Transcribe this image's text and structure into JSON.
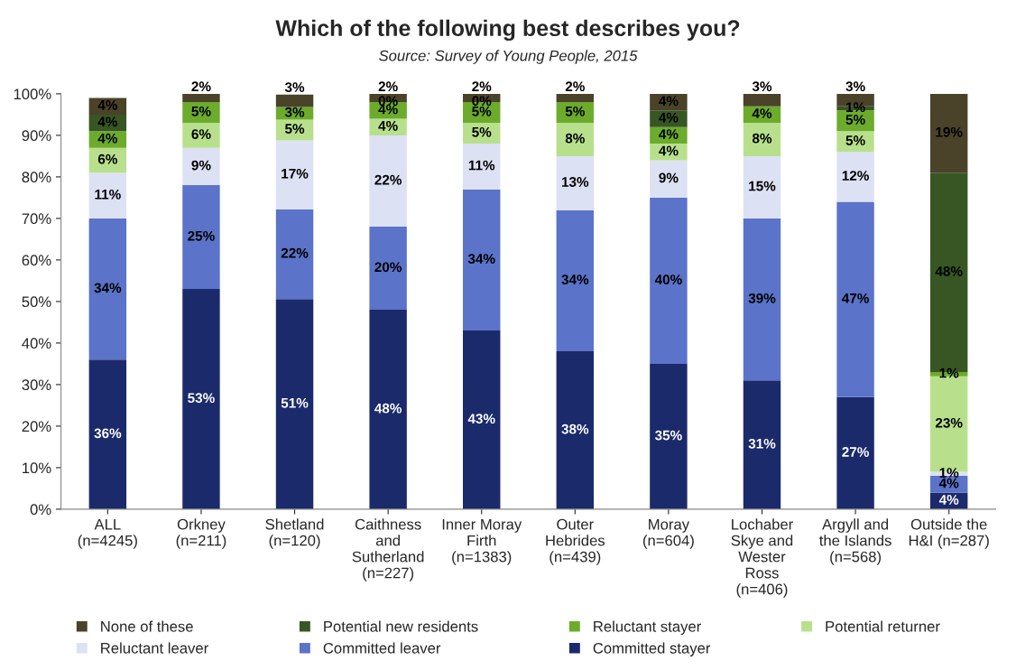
{
  "chart_data": {
    "type": "bar",
    "stacked": true,
    "title": "Which of the following best describes you?",
    "subtitle": "Source: Survey of Young People, 2015",
    "categories": [
      "ALL\n(n=4245)",
      "Orkney\n(n=211)",
      "Shetland\n(n=120)",
      "Caithness\nand\nSutherland\n(n=227)",
      "Inner Moray\nFirth\n(n=1383)",
      "Outer\nHebrides\n(n=439)",
      "Moray\n(n=604)",
      "Lochaber\nSkye and\nWester\nRoss\n(n=406)",
      "Argyll and\nthe Islands\n(n=568)",
      "Outside the\nH&I (n=287)"
    ],
    "ylim": [
      0,
      100
    ],
    "yticks": [
      {
        "value": 0,
        "label": "0%"
      },
      {
        "value": 10,
        "label": "10%"
      },
      {
        "value": 20,
        "label": "20%"
      },
      {
        "value": 30,
        "label": "30%"
      },
      {
        "value": 40,
        "label": "40%"
      },
      {
        "value": 50,
        "label": "50%"
      },
      {
        "value": 60,
        "label": "60%"
      },
      {
        "value": 70,
        "label": "70%"
      },
      {
        "value": 80,
        "label": "80%"
      },
      {
        "value": 90,
        "label": "90%"
      },
      {
        "value": 100,
        "label": "100%"
      }
    ],
    "grid": false,
    "legend": "bottom",
    "series": [
      {
        "name": "Committed stayer",
        "color": "#1b2a6b",
        "values": [
          36,
          53,
          50.6,
          48,
          43,
          38,
          35,
          31,
          27,
          4
        ],
        "value_labels": [
          "36%",
          "53%",
          "51%",
          "48%",
          "43%",
          "38%",
          "35%",
          "31%",
          "27%",
          "4%"
        ]
      },
      {
        "name": "Committed leaver",
        "color": "#5b73c8",
        "values": [
          34,
          25,
          21.6,
          20,
          34,
          34,
          40,
          39,
          47,
          4
        ],
        "value_labels": [
          "34%",
          "25%",
          "22%",
          "20%",
          "34%",
          "34%",
          "40%",
          "39%",
          "47%",
          "4%"
        ]
      },
      {
        "name": "Reluctant leaver",
        "color": "#dde1f4",
        "values": [
          11,
          9,
          16.6,
          22,
          11,
          13,
          9,
          15,
          12,
          1
        ],
        "value_labels": [
          "11%",
          "9%",
          "17%",
          "22%",
          "11%",
          "13%",
          "9%",
          "15%",
          "12%",
          "1%"
        ]
      },
      {
        "name": "Potential returner",
        "color": "#b8e08c",
        "values": [
          6,
          6,
          5,
          4,
          5,
          8,
          4,
          8,
          5,
          23
        ],
        "value_labels": [
          "6%",
          "6%",
          "5%",
          "4%",
          "5%",
          "8%",
          "4%",
          "8%",
          "5%",
          "23%"
        ]
      },
      {
        "name": "Reluctant stayer",
        "color": "#6cab2c",
        "values": [
          4,
          5,
          3,
          4,
          5,
          5,
          4,
          4,
          5,
          1
        ],
        "value_labels": [
          "4%",
          "5%",
          "3%",
          "4%",
          "5%",
          "5%",
          "4%",
          "4%",
          "5%",
          "1%"
        ]
      },
      {
        "name": "Potential new residents",
        "color": "#375623",
        "values": [
          4,
          0,
          0,
          0,
          0,
          0,
          4,
          0,
          1,
          48
        ],
        "value_labels": [
          "4%",
          null,
          null,
          "0%",
          "0%",
          null,
          "4%",
          null,
          "1%",
          "48%"
        ]
      },
      {
        "name": "None of these",
        "color": "#4a4229",
        "values": [
          4,
          2,
          3,
          2,
          2,
          2,
          4,
          3,
          3,
          19
        ],
        "value_labels": [
          "4%",
          "2%",
          "3%",
          "2%",
          "2%",
          "2%",
          "4%",
          "3%",
          "3%",
          "19%"
        ]
      }
    ]
  }
}
